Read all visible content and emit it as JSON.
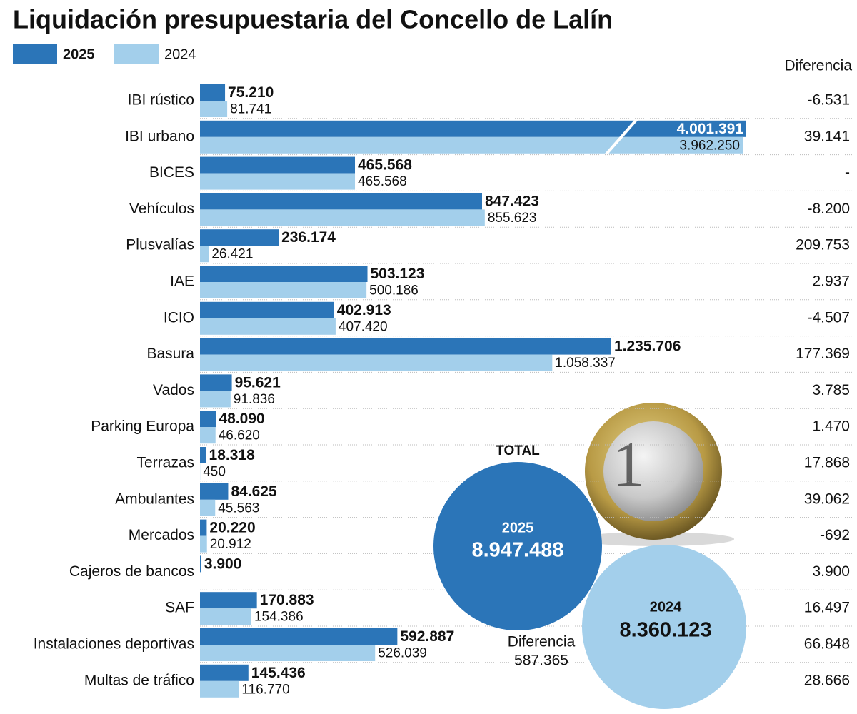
{
  "chart_data": {
    "type": "bar",
    "title": "Liquidación presupuestaria del Concello de Lalín",
    "categories": [
      "IBI rústico",
      "IBI urbano",
      "BICES",
      "Vehículos",
      "Plusvalías",
      "IAE",
      "ICIO",
      "Basura",
      "Vados",
      "Parking  Europa",
      "Terrazas",
      "Ambulantes",
      "Mercados",
      "Cajeros  de bancos",
      "SAF",
      "Instalaciones deportivas",
      "Multas de tráfico"
    ],
    "series": [
      {
        "name": "2025",
        "color": "#2b75b8",
        "values": [
          75210,
          4001391,
          465568,
          847423,
          236174,
          503123,
          402913,
          1235706,
          95621,
          48090,
          18318,
          84625,
          20220,
          3900,
          170883,
          592887,
          145436
        ],
        "value_labels": [
          "75.210",
          "4.001.391",
          "465.568",
          "847.423",
          "236.174",
          "503.123",
          "402.913",
          "1.235.706",
          "95.621",
          "48.090",
          "18.318",
          "84.625",
          "20.220",
          "3.900",
          "170.883",
          "592.887",
          "145.436"
        ]
      },
      {
        "name": "2024",
        "color": "#a3cfeb",
        "values": [
          81741,
          3962250,
          465568,
          855623,
          26421,
          500186,
          407420,
          1058337,
          91836,
          46620,
          450,
          45563,
          20912,
          null,
          154386,
          526039,
          116770
        ],
        "value_labels": [
          "81.741",
          "3.962.250",
          "465.568",
          "855.623",
          "26.421",
          "500.186",
          "407.420",
          "1.058.337",
          "91.836",
          "46.620",
          "450",
          "45.563",
          "20.912",
          null,
          "154.386",
          "526.039",
          "116.770"
        ]
      }
    ],
    "difference_header": "Diferencia",
    "differences": [
      -6531,
      39141,
      0,
      -8200,
      209753,
      2937,
      -4507,
      177369,
      3785,
      1470,
      17868,
      39062,
      -692,
      3900,
      16497,
      66848,
      28666
    ],
    "difference_labels": [
      "-6.531",
      "39.141",
      "-",
      "-8.200",
      "209.753",
      "2.937",
      "-4.507",
      "177.369",
      "3.785",
      "1.470",
      "17.868",
      "39.062",
      "-692",
      "3.900",
      "16.497",
      "66.848",
      "28.666"
    ],
    "totals": {
      "title": "TOTAL",
      "current": {
        "name": "2025",
        "value": 8947488,
        "label": "8.947.488"
      },
      "previous": {
        "name": "2024",
        "value": 8360123,
        "label": "8.360.123"
      },
      "difference": {
        "name": "Diferencia",
        "value": 587365,
        "label": "587.365"
      }
    }
  }
}
